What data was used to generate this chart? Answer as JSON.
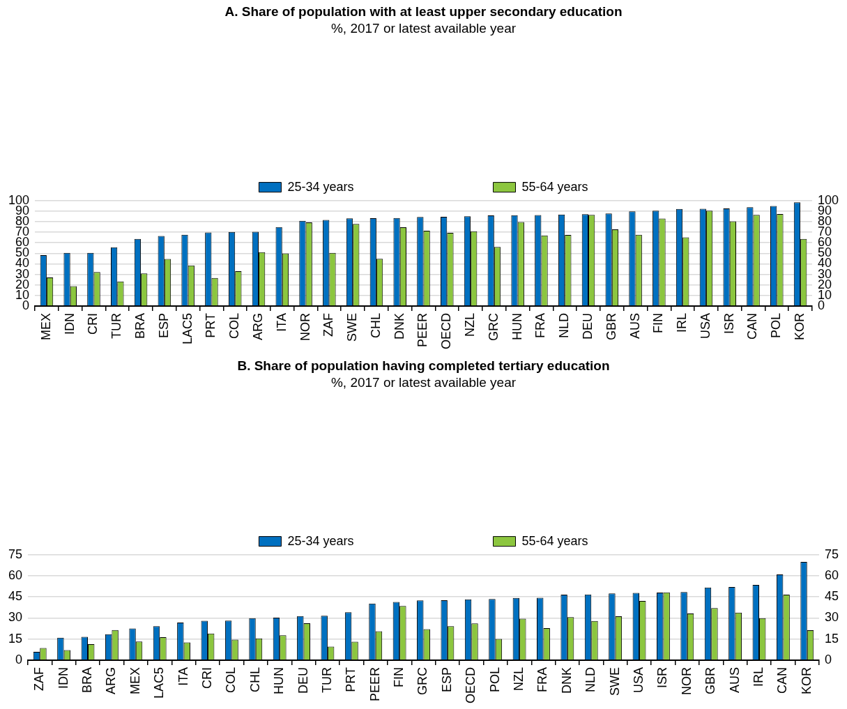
{
  "chart_data": [
    {
      "type": "bar",
      "title": "A. Share of population with at least upper secondary education",
      "subtitle": "%, 2017 or latest available year",
      "categories": [
        "MEX",
        "IDN",
        "CRI",
        "TUR",
        "BRA",
        "ESP",
        "LAC5",
        "PRT",
        "COL",
        "ARG",
        "ITA",
        "NOR",
        "ZAF",
        "SWE",
        "CHL",
        "DNK",
        "PEER",
        "OECD",
        "NZL",
        "GRC",
        "HUN",
        "FRA",
        "NLD",
        "DEU",
        "GBR",
        "AUS",
        "FIN",
        "IRL",
        "USA",
        "ISR",
        "CAN",
        "POL",
        "KOR"
      ],
      "series": [
        {
          "name": "25-34 years",
          "color": "#0070c0",
          "values": [
            48.2,
            50.3,
            50.3,
            55.6,
            63.6,
            66.3,
            67.5,
            69.7,
            70.1,
            70.3,
            74.8,
            80.8,
            81.6,
            83.1,
            83.3,
            83.4,
            84.3,
            84.5,
            85.0,
            85.8,
            86.1,
            86.2,
            86.7,
            87.0,
            87.6,
            89.6,
            90.3,
            92.0,
            92.2,
            92.5,
            93.6,
            94.7,
            98.2
          ]
        },
        {
          "name": "55-64 years",
          "color": "#8cc63f",
          "values": [
            27.1,
            18.9,
            32.2,
            23.3,
            30.9,
            44.5,
            38.4,
            26.6,
            33.0,
            51.1,
            49.8,
            79.2,
            50.3,
            77.8,
            44.8,
            74.6,
            71.3,
            69.3,
            70.8,
            55.9,
            79.6,
            66.8,
            67.3,
            86.3,
            72.6,
            67.6,
            82.9,
            65.0,
            90.3,
            80.2,
            86.4,
            87.2,
            63.6
          ]
        }
      ],
      "ylim": [
        0,
        100
      ],
      "yticks": [
        0,
        10,
        20,
        30,
        40,
        50,
        60,
        70,
        80,
        90,
        100
      ],
      "y2lim": [
        0,
        100
      ],
      "y2ticks": [
        0,
        10,
        20,
        30,
        40,
        50,
        60,
        70,
        80,
        90,
        100
      ],
      "grid": "y",
      "legend": "top"
    },
    {
      "type": "bar",
      "title": "B. Share of population having completed tertiary education",
      "subtitle": "%, 2017 or latest available year",
      "categories": [
        "ZAF",
        "IDN",
        "BRA",
        "ARG",
        "MEX",
        "LAC5",
        "ITA",
        "CRI",
        "COL",
        "CHL",
        "HUN",
        "DEU",
        "TUR",
        "PRT",
        "PEER",
        "FIN",
        "GRC",
        "ESP",
        "OECD",
        "POL",
        "NZL",
        "FRA",
        "DNK",
        "NLD",
        "SWE",
        "USA",
        "ISR",
        "NOR",
        "GBR",
        "AUS",
        "IRL",
        "CAN",
        "KOR"
      ],
      "series": [
        {
          "name": "25-34 years",
          "color": "#0070c0",
          "values": [
            5.9,
            16.0,
            16.6,
            18.4,
            22.5,
            24.1,
            26.7,
            28.0,
            28.1,
            29.9,
            30.2,
            31.3,
            31.6,
            34.0,
            40.2,
            41.4,
            42.5,
            42.6,
            43.2,
            43.5,
            44.2,
            44.3,
            46.6,
            46.7,
            47.4,
            47.8,
            48.1,
            48.4,
            51.7,
            52.0,
            53.5,
            60.9,
            69.8
          ]
        },
        {
          "name": "55-64 years",
          "color": "#8cc63f",
          "values": [
            8.7,
            7.2,
            11.4,
            21.4,
            13.2,
            16.3,
            12.6,
            19.0,
            14.6,
            15.5,
            17.7,
            26.3,
            9.6,
            13.1,
            20.6,
            38.5,
            22.0,
            24.2,
            26.1,
            15.1,
            29.5,
            22.8,
            30.6,
            27.9,
            31.2,
            42.1,
            48.2,
            33.2,
            37.0,
            33.8,
            29.9,
            46.6,
            21.3
          ]
        }
      ],
      "ylim": [
        0,
        75
      ],
      "yticks": [
        0,
        15,
        30,
        45,
        60,
        75
      ],
      "y2lim": [
        0,
        75
      ],
      "y2ticks": [
        0,
        15,
        30,
        45,
        60,
        75
      ],
      "grid": "y",
      "legend": "top"
    }
  ]
}
